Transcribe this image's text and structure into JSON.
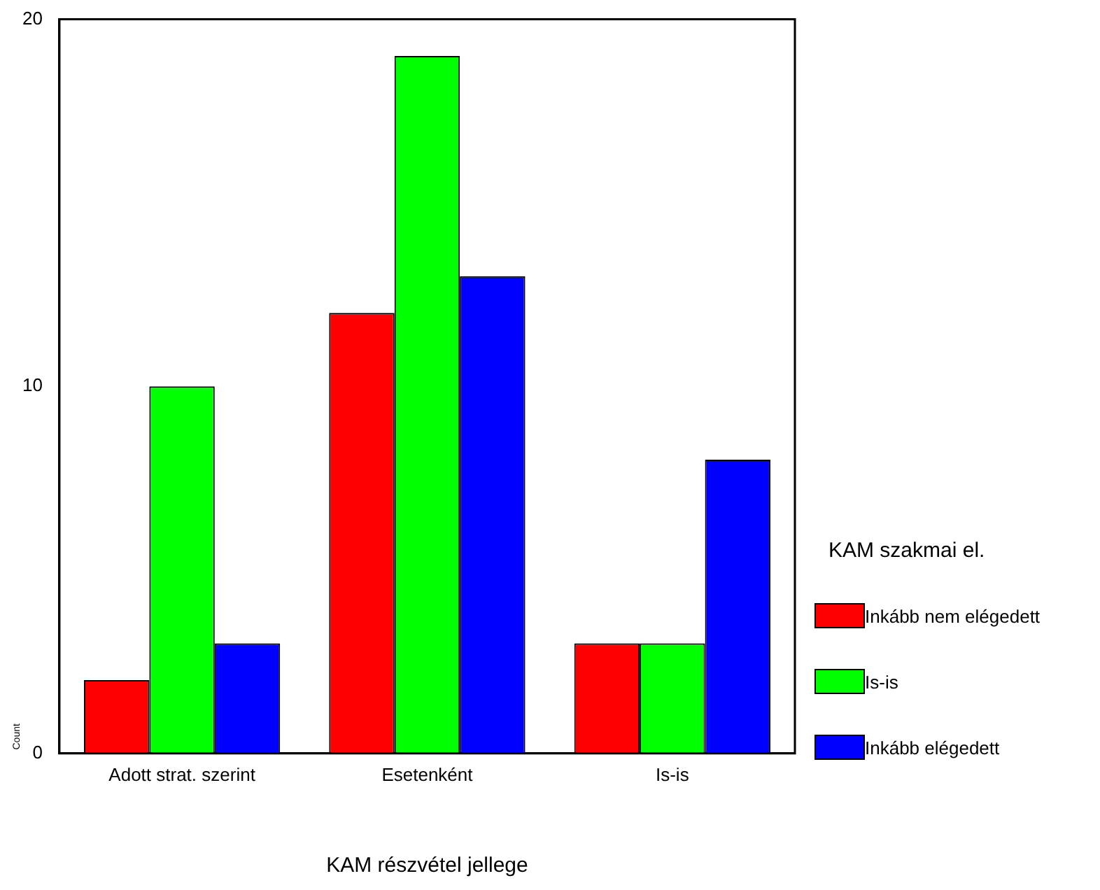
{
  "chart_data": {
    "type": "bar",
    "xlabel": "KAM részvétel jellege",
    "ylabel": "Count",
    "legend_title": "KAM szakmai el.",
    "categories": [
      "Adott strat. szerint",
      "Esetenként",
      "Is-is"
    ],
    "series": [
      {
        "name": "Inkább nem elégedett",
        "color": "#ff0000",
        "values": [
          2,
          12,
          3
        ]
      },
      {
        "name": "Is-is",
        "color": "#00ff00",
        "values": [
          10,
          19,
          3
        ]
      },
      {
        "name": "Inkább elégedett",
        "color": "#0000ff",
        "values": [
          3,
          13,
          8
        ]
      }
    ],
    "ylim": [
      0,
      20
    ],
    "yticks": [
      0,
      10,
      20
    ],
    "grid": false,
    "legend": "right"
  }
}
